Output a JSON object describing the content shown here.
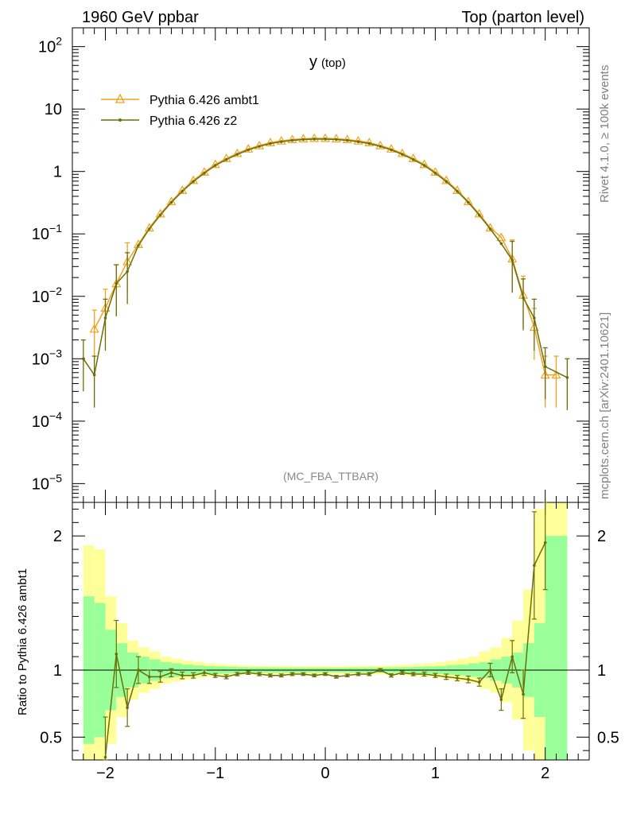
{
  "header": {
    "left": "1960 GeV ppbar",
    "right": "Top (parton level)"
  },
  "side_labels": {
    "rivet": "Rivet 4.1.0, ≥ 100k events",
    "mcplots": "mcplots.cern.ch [arXiv:2401.10621]"
  },
  "analysis_label": "(MC_FBA_TTBAR)",
  "chart_data": [
    {
      "type": "line",
      "panel": "main",
      "title_main": "y",
      "title_sub": "(top)",
      "xlabel": "",
      "ylabel": "",
      "xlim": [
        -2.3,
        2.4
      ],
      "ylim": [
        5e-06,
        200
      ],
      "yscale": "log",
      "x_ticks": [
        -2,
        -1,
        0,
        1,
        2
      ],
      "y_ticks": [
        {
          "value": 1e-05,
          "base": "10",
          "exp": "−5"
        },
        {
          "value": 0.0001,
          "base": "10",
          "exp": "−4"
        },
        {
          "value": 0.001,
          "base": "10",
          "exp": "−3"
        },
        {
          "value": 0.01,
          "base": "10",
          "exp": "−2"
        },
        {
          "value": 0.1,
          "base": "10",
          "exp": "−1"
        },
        {
          "value": 1,
          "base": "1",
          "exp": ""
        },
        {
          "value": 10,
          "base": "10",
          "exp": ""
        },
        {
          "value": 100,
          "base": "10",
          "exp": "2"
        }
      ],
      "legend_position": "top-left",
      "series": [
        {
          "name": "Pythia 6.426 ambt1",
          "color": "#f0a21e",
          "marker": "triangle",
          "x": [
            -2.1,
            -2.0,
            -1.9,
            -1.8,
            -1.7,
            -1.6,
            -1.5,
            -1.4,
            -1.3,
            -1.2,
            -1.1,
            -1.0,
            -0.9,
            -0.8,
            -0.7,
            -0.6,
            -0.5,
            -0.4,
            -0.3,
            -0.2,
            -0.1,
            0.0,
            0.1,
            0.2,
            0.3,
            0.4,
            0.5,
            0.6,
            0.7,
            0.8,
            0.9,
            1.0,
            1.1,
            1.2,
            1.3,
            1.4,
            1.5,
            1.6,
            1.7,
            1.8,
            1.9,
            2.0,
            2.1
          ],
          "y": [
            0.003,
            0.0065,
            0.016,
            0.036,
            0.068,
            0.125,
            0.21,
            0.33,
            0.5,
            0.72,
            0.98,
            1.3,
            1.62,
            1.95,
            2.3,
            2.6,
            2.9,
            3.1,
            3.25,
            3.35,
            3.4,
            3.4,
            3.35,
            3.25,
            3.1,
            2.9,
            2.6,
            2.3,
            1.95,
            1.62,
            1.3,
            0.98,
            0.72,
            0.5,
            0.33,
            0.21,
            0.125,
            0.088,
            0.04,
            0.0105,
            0.0032,
            0.00055,
            0.00055
          ]
        },
        {
          "name": "Pythia 6.426 z2",
          "color": "#6b6f0a",
          "marker": "dot",
          "x": [
            -2.2,
            -2.1,
            -2.0,
            -1.9,
            -1.8,
            -1.7,
            -1.6,
            -1.5,
            -1.4,
            -1.3,
            -1.2,
            -1.1,
            -1.0,
            -0.9,
            -0.8,
            -0.7,
            -0.6,
            -0.5,
            -0.4,
            -0.3,
            -0.2,
            -0.1,
            0.0,
            0.1,
            0.2,
            0.3,
            0.4,
            0.5,
            0.6,
            0.7,
            0.8,
            0.9,
            1.0,
            1.1,
            1.2,
            1.3,
            1.4,
            1.5,
            1.6,
            1.7,
            1.8,
            1.9,
            2.0,
            2.2
          ],
          "y": [
            0.001,
            0.00055,
            0.0045,
            0.016,
            0.025,
            0.065,
            0.12,
            0.2,
            0.32,
            0.48,
            0.69,
            0.94,
            1.25,
            1.55,
            1.88,
            2.22,
            2.52,
            2.8,
            3.0,
            3.15,
            3.25,
            3.3,
            3.3,
            3.25,
            3.15,
            3.0,
            2.8,
            2.52,
            2.22,
            1.88,
            1.55,
            1.25,
            0.94,
            0.69,
            0.48,
            0.32,
            0.2,
            0.12,
            0.07,
            0.038,
            0.0095,
            0.0045,
            0.00075,
            0.0005
          ]
        }
      ]
    },
    {
      "type": "line",
      "panel": "ratio",
      "xlabel": "",
      "ylabel": "Ratio to Pythia 6.426 ambt1",
      "xlim": [
        -2.3,
        2.4
      ],
      "ylim": [
        0.33,
        2.25
      ],
      "x_ticks": [
        -2,
        -1,
        0,
        1,
        2
      ],
      "x_tick_labels": [
        "−2",
        "−1",
        "0",
        "1",
        "2"
      ],
      "y_ticks": [
        0.5,
        1,
        2
      ],
      "y_tick_labels": [
        "0.5",
        "1",
        "2"
      ],
      "reference_line": 1,
      "band_edges": [
        -2.2,
        -2.1,
        -2.0,
        -1.9,
        -1.8,
        -1.7,
        -1.6,
        -1.5,
        -1.4,
        -1.3,
        -1.2,
        -1.1,
        -1.0,
        -0.9,
        -0.8,
        -0.7,
        -0.6,
        -0.5,
        -0.4,
        -0.3,
        -0.2,
        -0.1,
        0.0,
        0.1,
        0.2,
        0.3,
        0.4,
        0.5,
        0.6,
        0.7,
        0.8,
        0.9,
        1.0,
        1.1,
        1.2,
        1.3,
        1.4,
        1.5,
        1.6,
        1.7,
        1.8,
        1.9,
        2.0,
        2.1,
        2.2
      ],
      "band_1sigma": [
        0.55,
        0.5,
        0.3,
        0.2,
        0.13,
        0.1,
        0.08,
        0.06,
        0.05,
        0.04,
        0.035,
        0.03,
        0.028,
        0.025,
        0.022,
        0.02,
        0.02,
        0.019,
        0.018,
        0.018,
        0.017,
        0.017,
        0.017,
        0.017,
        0.018,
        0.018,
        0.019,
        0.02,
        0.02,
        0.022,
        0.025,
        0.028,
        0.03,
        0.035,
        0.04,
        0.05,
        0.06,
        0.08,
        0.1,
        0.13,
        0.2,
        0.35,
        1.0,
        1.0
      ],
      "band_2sigma": [
        0.93,
        0.9,
        0.55,
        0.35,
        0.22,
        0.17,
        0.14,
        0.1,
        0.085,
        0.07,
        0.06,
        0.05,
        0.045,
        0.04,
        0.036,
        0.034,
        0.033,
        0.032,
        0.031,
        0.03,
        0.03,
        0.03,
        0.03,
        0.03,
        0.031,
        0.032,
        0.033,
        0.034,
        0.036,
        0.04,
        0.045,
        0.05,
        0.06,
        0.07,
        0.085,
        0.1,
        0.14,
        0.17,
        0.24,
        0.37,
        0.6,
        1.2,
        1.4,
        1.4
      ],
      "series": [
        {
          "name": "Pythia 6.426 z2",
          "color": "#6b6f0a",
          "x": [
            -2.0,
            -1.9,
            -1.8,
            -1.7,
            -1.6,
            -1.5,
            -1.4,
            -1.3,
            -1.2,
            -1.1,
            -1.0,
            -0.9,
            -0.8,
            -0.7,
            -0.6,
            -0.5,
            -0.4,
            -0.3,
            -0.2,
            -0.1,
            0.0,
            0.1,
            0.2,
            0.3,
            0.4,
            0.5,
            0.6,
            0.7,
            0.8,
            0.9,
            1.0,
            1.1,
            1.2,
            1.3,
            1.4,
            1.5,
            1.6,
            1.7,
            1.8,
            1.9,
            2.0
          ],
          "y": [
            0.35,
            1.12,
            0.72,
            1.0,
            0.95,
            0.95,
            0.98,
            0.96,
            0.96,
            0.98,
            0.96,
            0.95,
            0.97,
            0.98,
            0.97,
            0.96,
            0.96,
            0.97,
            0.97,
            0.96,
            0.97,
            0.95,
            0.96,
            0.97,
            0.97,
            1.0,
            0.96,
            0.98,
            0.97,
            0.97,
            0.96,
            0.95,
            0.94,
            0.93,
            0.91,
            1.0,
            0.78,
            1.1,
            0.82,
            1.78,
            1.95
          ],
          "err": [
            0.3,
            0.25,
            0.14,
            0.1,
            0.05,
            0.04,
            0.03,
            0.025,
            0.02,
            0.02,
            0.015,
            0.015,
            0.012,
            0.012,
            0.012,
            0.011,
            0.011,
            0.011,
            0.01,
            0.01,
            0.01,
            0.01,
            0.01,
            0.011,
            0.011,
            0.011,
            0.012,
            0.012,
            0.012,
            0.015,
            0.015,
            0.02,
            0.02,
            0.025,
            0.03,
            0.05,
            0.08,
            0.12,
            0.18,
            0.4,
            0.35
          ]
        }
      ]
    }
  ]
}
